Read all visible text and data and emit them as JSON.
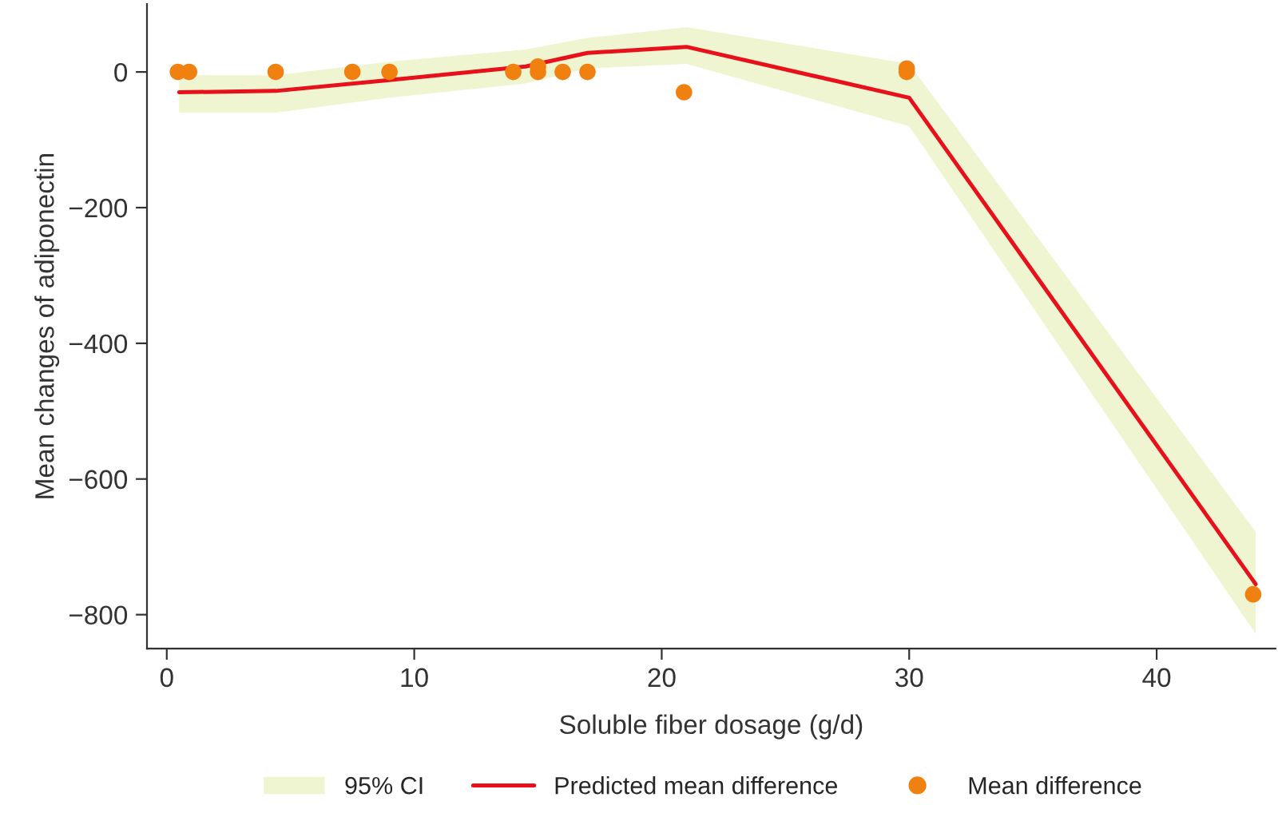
{
  "chart_data": {
    "type": "line",
    "xlabel": "Soluble fiber dosage (g/d)",
    "ylabel": "Mean changes of adiponectin",
    "xlim": [
      -0.8,
      44.8
    ],
    "xticks": [
      0,
      10,
      20,
      30,
      40
    ],
    "ylim": [
      -850,
      100
    ],
    "yticks": [
      0,
      -200,
      -400,
      -600,
      -800
    ],
    "grid": false,
    "legend": "bottom",
    "annotations": [
      "95% CI"
    ],
    "series": [
      {
        "name": "Predicted mean difference",
        "color": "#e8111b",
        "x": [
          0.5,
          4.4,
          9,
          14.5,
          17,
          21,
          30,
          44
        ],
        "values": [
          -30,
          -28,
          -12,
          8,
          28,
          37,
          -38,
          -755
        ],
        "lower": [
          -60,
          -60,
          -38,
          -17,
          5,
          12,
          -80,
          -828
        ],
        "upper": [
          -5,
          -5,
          15,
          33,
          50,
          66,
          12,
          -678
        ]
      },
      {
        "type": "scatter",
        "name": "Mean difference",
        "color": "#f08010",
        "marker": "circle",
        "x": [
          0.45,
          0.9,
          4.4,
          7.5,
          9.0,
          14.0,
          15.0,
          15.0,
          16.0,
          17.0,
          20.9,
          29.9,
          29.9,
          43.9
        ],
        "values": [
          0,
          0,
          0,
          0,
          0,
          0,
          0,
          8,
          0,
          0,
          -30,
          5,
          0,
          -770
        ]
      }
    ]
  }
}
